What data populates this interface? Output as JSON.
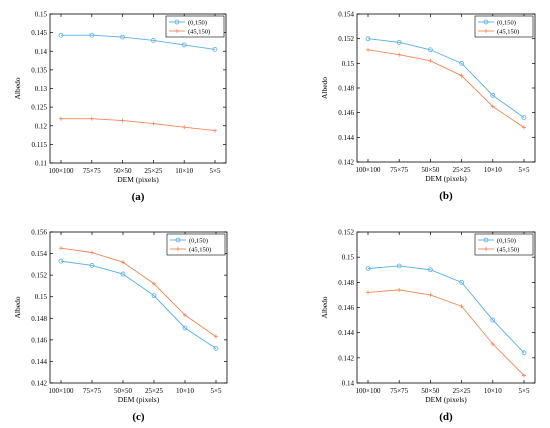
{
  "chart_data": [
    {
      "type": "line",
      "panel_label": "(a)",
      "categories": [
        "100×100",
        "75×75",
        "50×50",
        "25×25",
        "10×10",
        "5×5"
      ],
      "xlabel": "DEM (pixels)",
      "ylabel": "Albedo",
      "ylim": [
        0.11,
        0.15
      ],
      "yticks": [
        "0.11",
        "0.115",
        "0.12",
        "0.125",
        "0.13",
        "0.135",
        "0.14",
        "0.145",
        "0.15"
      ],
      "legend_position": "top-right",
      "series": [
        {
          "name": "(0,150)",
          "values": [
            0.1443,
            0.1443,
            0.1438,
            0.1429,
            0.1417,
            0.1405
          ],
          "color": "#5aaee8",
          "marker": "circle"
        },
        {
          "name": "(45,150)",
          "values": [
            0.1219,
            0.1219,
            0.1214,
            0.1206,
            0.1196,
            0.1187
          ],
          "color": "#f0885a",
          "marker": "plus"
        }
      ]
    },
    {
      "type": "line",
      "panel_label": "(b)",
      "categories": [
        "100×100",
        "75×75",
        "50×50",
        "25×25",
        "10×10",
        "5×5"
      ],
      "xlabel": "DEM (pixels)",
      "ylabel": "Albedo",
      "ylim": [
        0.142,
        0.154
      ],
      "yticks": [
        "0.142",
        "0.144",
        "0.146",
        "0.148",
        "0.15",
        "0.152",
        "0.154"
      ],
      "legend_position": "top-right",
      "series": [
        {
          "name": "(0,150)",
          "values": [
            0.152,
            0.1517,
            0.1511,
            0.15,
            0.1474,
            0.1456
          ],
          "color": "#5aaee8",
          "marker": "circle"
        },
        {
          "name": "(45,150)",
          "values": [
            0.1511,
            0.1507,
            0.1502,
            0.149,
            0.1465,
            0.1448
          ],
          "color": "#f0885a",
          "marker": "plus"
        }
      ]
    },
    {
      "type": "line",
      "panel_label": "(c)",
      "categories": [
        "100×100",
        "75×75",
        "50×50",
        "25×25",
        "10×10",
        "5×5"
      ],
      "xlabel": "DEM (pixels)",
      "ylabel": "Albedo",
      "ylim": [
        0.142,
        0.156
      ],
      "yticks": [
        "0.142",
        "0.144",
        "0.146",
        "0.148",
        "0.15",
        "0.152",
        "0.154",
        "0.156"
      ],
      "legend_position": "top-right",
      "series": [
        {
          "name": "(0,150)",
          "values": [
            0.1533,
            0.1529,
            0.1521,
            0.1501,
            0.1471,
            0.1452
          ],
          "color": "#5aaee8",
          "marker": "circle"
        },
        {
          "name": "(45,150)",
          "values": [
            0.1545,
            0.1541,
            0.1532,
            0.1512,
            0.1483,
            0.1463
          ],
          "color": "#f0885a",
          "marker": "plus"
        }
      ]
    },
    {
      "type": "line",
      "panel_label": "(d)",
      "categories": [
        "100×100",
        "75×75",
        "50×50",
        "25×25",
        "10×10",
        "5×5"
      ],
      "xlabel": "DEM (pixels)",
      "ylabel": "Albedo",
      "ylim": [
        0.14,
        0.152
      ],
      "yticks": [
        "0.14",
        "0.142",
        "0.144",
        "0.146",
        "0.148",
        "0.15",
        "0.152"
      ],
      "legend_position": "top-right",
      "series": [
        {
          "name": "(0,150)",
          "values": [
            0.1491,
            0.1493,
            0.149,
            0.148,
            0.145,
            0.1424
          ],
          "color": "#5aaee8",
          "marker": "circle"
        },
        {
          "name": "(45,150)",
          "values": [
            0.1472,
            0.1474,
            0.147,
            0.1461,
            0.1431,
            0.1406
          ],
          "color": "#f0885a",
          "marker": "plus"
        }
      ]
    }
  ]
}
